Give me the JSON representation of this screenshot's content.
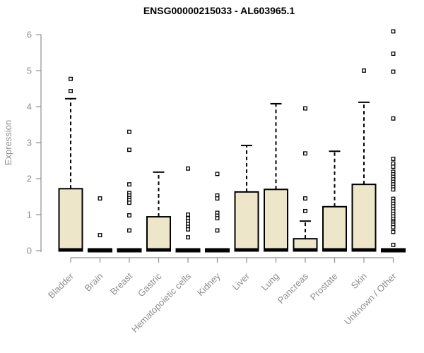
{
  "page": {
    "background": "#ffffff"
  },
  "chart_data": {
    "type": "boxplot",
    "title": "ENSG00000215033 - AL603965.1",
    "ylabel": "Expression",
    "xlabel": "",
    "ylim": [
      0,
      6
    ],
    "yticks": [
      "0",
      "1",
      "2",
      "3",
      "4",
      "5",
      "6"
    ],
    "grid": false,
    "legend": "none",
    "colors": {
      "box_fill": "#EDE6C8",
      "box_border": "#000000",
      "median": "#000000",
      "whisker": "#000000",
      "outlier": "#000000",
      "axis": "#8E8E8E",
      "tick_label": "#8E8E8E",
      "title": "#000000"
    },
    "categories": [
      "Bladder",
      "Brain",
      "Breast",
      "Gastric",
      "Hematopoietic cells",
      "Kidney",
      "Liver",
      "Lung",
      "Pancreas",
      "Prostate",
      "Skin",
      "Unknown / Other"
    ],
    "boxes": [
      {
        "category": "Bladder",
        "q1": 0,
        "median": 0,
        "q3": 1.72,
        "whisker_low": 0,
        "whisker_high": 4.22,
        "outliers": [
          4.77,
          4.43
        ]
      },
      {
        "category": "Brain",
        "q1": 0,
        "median": 0,
        "q3": 0,
        "whisker_low": 0,
        "whisker_high": 0,
        "outliers": [
          1.45,
          0.43
        ]
      },
      {
        "category": "Breast",
        "q1": 0,
        "median": 0,
        "q3": 0,
        "whisker_low": 0,
        "whisker_high": 0,
        "outliers": [
          3.3,
          2.8,
          1.84,
          1.6,
          1.53,
          1.46,
          1.4,
          1.33,
          0.98,
          0.56
        ]
      },
      {
        "category": "Gastric",
        "q1": 0,
        "median": 0,
        "q3": 0.94,
        "whisker_low": 0,
        "whisker_high": 2.18,
        "outliers": []
      },
      {
        "category": "Hematopoietic cells",
        "q1": 0,
        "median": 0,
        "q3": 0,
        "whisker_low": 0,
        "whisker_high": 0,
        "outliers": [
          2.28,
          1.0,
          0.9,
          0.82,
          0.74,
          0.66,
          0.59,
          0.37
        ]
      },
      {
        "category": "Kidney",
        "q1": 0,
        "median": 0,
        "q3": 0,
        "whisker_low": 0,
        "whisker_high": 0,
        "outliers": [
          2.13,
          1.53,
          1.45,
          1.05,
          0.97,
          0.9,
          0.56
        ]
      },
      {
        "category": "Liver",
        "q1": 0,
        "median": 0,
        "q3": 1.63,
        "whisker_low": 0,
        "whisker_high": 2.92,
        "outliers": []
      },
      {
        "category": "Lung",
        "q1": 0,
        "median": 0,
        "q3": 1.7,
        "whisker_low": 0,
        "whisker_high": 4.08,
        "outliers": []
      },
      {
        "category": "Pancreas",
        "q1": 0,
        "median": 0,
        "q3": 0.33,
        "whisker_low": 0,
        "whisker_high": 0.82,
        "outliers": [
          3.95,
          2.7,
          1.45,
          1.1
        ]
      },
      {
        "category": "Prostate",
        "q1": 0,
        "median": 0,
        "q3": 1.22,
        "whisker_low": 0,
        "whisker_high": 2.76,
        "outliers": []
      },
      {
        "category": "Skin",
        "q1": 0,
        "median": 0,
        "q3": 1.84,
        "whisker_low": 0,
        "whisker_high": 4.12,
        "outliers": [
          5.0
        ]
      },
      {
        "category": "Unknown / Other",
        "q1": 0,
        "median": 0,
        "q3": 0,
        "whisker_low": 0,
        "whisker_high": 0,
        "outliers": [
          6.09,
          5.47,
          4.97,
          3.67,
          2.55,
          2.42,
          2.33,
          2.19,
          2.12,
          2.05,
          1.98,
          1.91,
          1.84,
          1.77,
          1.7,
          1.44,
          1.37,
          1.3,
          1.23,
          1.16,
          1.09,
          1.02,
          0.95,
          0.88,
          0.82,
          0.78,
          0.72,
          0.65,
          0.52,
          0.16
        ]
      }
    ]
  }
}
